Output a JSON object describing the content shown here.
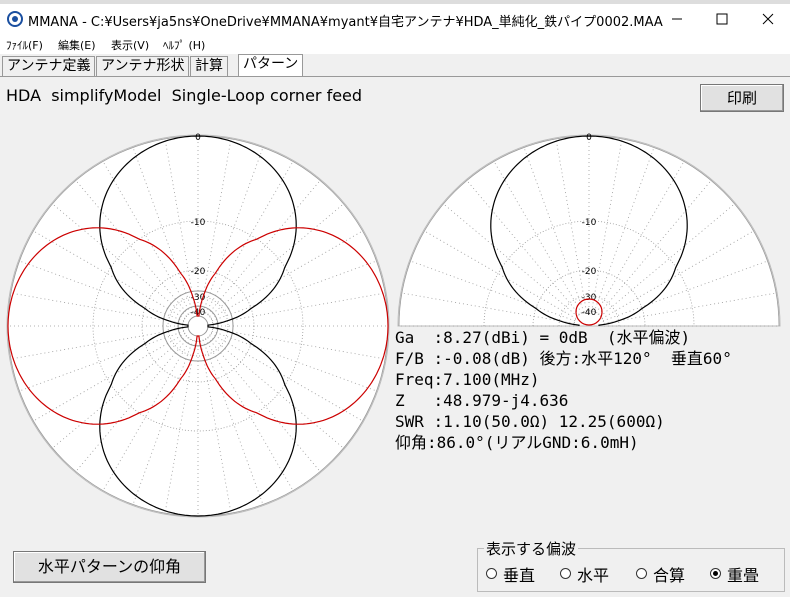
{
  "window": {
    "title": "MMANA - C:¥Users¥ja5ns¥OneDrive¥MMANA¥myant¥自宅アンテナ¥HDA_単純化_鉄パイプ0002.MAA"
  },
  "menu": [
    "ﾌｧｲﾙ(F)",
    "編集(E)",
    "表示(V)",
    "ﾍﾙﾌﾟ (H)"
  ],
  "tabs": [
    "アンテナ定義",
    "アンテナ形状",
    "計算",
    "パターン"
  ],
  "active_tab": 3,
  "model_description": "HDA  simplifyModel  Single-Loop corner feed",
  "print_button": "印刷",
  "horizontal_pattern": {
    "ring_labels": [
      "0",
      "-10",
      "-20",
      "-30",
      "-40"
    ]
  },
  "vertical_pattern": {
    "ring_labels": [
      "0",
      "-10",
      "-20",
      "-30",
      "-40"
    ]
  },
  "results": [
    "Ga  :8.27(dBi) = 0dB  (水平偏波)",
    "F/B :-0.08(dB) 後方:水平120°  垂直60°",
    "Freq:7.100(MHz)",
    "Z   :48.979-j4.636",
    "SWR :1.10(50.0Ω) 12.25(600Ω)",
    "仰角:86.0°(リアルGND:6.0mH)"
  ],
  "elevation_button": "水平パターンの仰角",
  "polarization": {
    "title": "表示する偏波",
    "options": [
      "垂直",
      "水平",
      "合算",
      "重畳"
    ],
    "selected": 3
  }
}
